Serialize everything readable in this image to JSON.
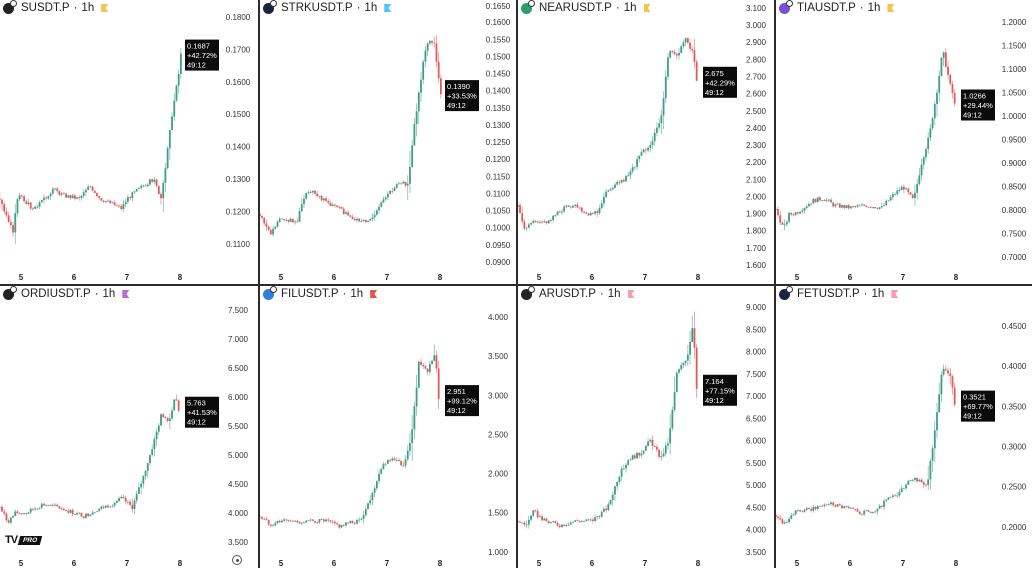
{
  "colors": {
    "up": "#3f9c86",
    "down": "#e05a5a",
    "label_bg": "#0b0b0b"
  },
  "timer": "49:12",
  "branding": {
    "logo": "TV PRO"
  },
  "chart_data": [
    {
      "type": "candlestick",
      "symbol": "SUSDT.P",
      "interval": "1h",
      "icon_color": "#222",
      "flag_color": "#f0c54a",
      "price": "0.1687",
      "change": "+42.72%",
      "last": 0.1687,
      "ylim": [
        0.1035,
        0.1806
      ],
      "yticks": [
        "0.1800",
        "0.1700",
        "0.1600",
        "0.1500",
        "0.1400",
        "0.1300",
        "0.1200",
        "0.1100"
      ],
      "xticks": [
        "5",
        "6",
        "7",
        "8"
      ],
      "path": [
        [
          4.6,
          0.124
        ],
        [
          4.75,
          0.117
        ],
        [
          4.85,
          0.114
        ],
        [
          4.95,
          0.126
        ],
        [
          5.2,
          0.121
        ],
        [
          5.4,
          0.123
        ],
        [
          5.6,
          0.127
        ],
        [
          5.8,
          0.125
        ],
        [
          6.1,
          0.124
        ],
        [
          6.3,
          0.128
        ],
        [
          6.5,
          0.124
        ],
        [
          6.9,
          0.121
        ],
        [
          7.0,
          0.124
        ],
        [
          7.3,
          0.128
        ],
        [
          7.5,
          0.13
        ],
        [
          7.65,
          0.124
        ],
        [
          7.72,
          0.133
        ],
        [
          7.85,
          0.15
        ],
        [
          8.0,
          0.165
        ],
        [
          8.05,
          0.1687
        ]
      ]
    },
    {
      "type": "candlestick",
      "symbol": "STRKUSDT.P",
      "interval": "1h",
      "icon_color": "#1c2340",
      "flag_color": "#4fc3f7",
      "price": "0.1390",
      "change": "+33.53%",
      "last": 0.139,
      "ylim": [
        0.0891,
        0.1621
      ],
      "yticks": [
        "0.1650",
        "0.1600",
        "0.1550",
        "0.1500",
        "0.1450",
        "0.1400",
        "0.1350",
        "0.1300",
        "0.1250",
        "0.1200",
        "0.1150",
        "0.1100",
        "0.1050",
        "0.1000",
        "0.0950",
        "0.0900"
      ],
      "xticks": [
        "5",
        "6",
        "7",
        "8"
      ],
      "path": [
        [
          4.6,
          0.104
        ],
        [
          4.8,
          0.098
        ],
        [
          4.95,
          0.102
        ],
        [
          5.1,
          0.1025
        ],
        [
          5.3,
          0.1015
        ],
        [
          5.45,
          0.11
        ],
        [
          5.6,
          0.111
        ],
        [
          5.8,
          0.108
        ],
        [
          6.2,
          0.1045
        ],
        [
          6.5,
          0.1015
        ],
        [
          6.7,
          0.1025
        ],
        [
          6.95,
          0.109
        ],
        [
          7.2,
          0.1125
        ],
        [
          7.4,
          0.113
        ],
        [
          7.5,
          0.128
        ],
        [
          7.7,
          0.15
        ],
        [
          7.8,
          0.155
        ],
        [
          7.9,
          0.153
        ],
        [
          8.0,
          0.141
        ],
        [
          8.05,
          0.139
        ]
      ]
    },
    {
      "type": "candlestick",
      "symbol": "NEARUSDT.P",
      "interval": "1h",
      "icon_color": "#2e9e6e",
      "flag_color": "#f0c54a",
      "price": "2.675",
      "change": "+42.29%",
      "last": 2.675,
      "ylim": [
        1.6,
        3.059
      ],
      "yticks": [
        "3.100",
        "3.000",
        "2.900",
        "2.800",
        "2.700",
        "2.600",
        "2.500",
        "2.400",
        "2.300",
        "2.200",
        "2.100",
        "2.000",
        "1.900",
        "1.800",
        "1.700",
        "1.600"
      ],
      "xticks": [
        "5",
        "6",
        "7",
        "8"
      ],
      "path": [
        [
          4.6,
          1.94
        ],
        [
          4.75,
          1.8
        ],
        [
          4.85,
          1.85
        ],
        [
          5.0,
          1.84
        ],
        [
          5.2,
          1.86
        ],
        [
          5.5,
          1.94
        ],
        [
          5.7,
          1.95
        ],
        [
          5.9,
          1.9
        ],
        [
          6.1,
          1.91
        ],
        [
          6.3,
          2.04
        ],
        [
          6.5,
          2.08
        ],
        [
          6.7,
          2.12
        ],
        [
          6.9,
          2.24
        ],
        [
          7.1,
          2.3
        ],
        [
          7.3,
          2.45
        ],
        [
          7.45,
          2.85
        ],
        [
          7.6,
          2.82
        ],
        [
          7.75,
          2.92
        ],
        [
          7.9,
          2.85
        ],
        [
          8.0,
          2.675
        ]
      ]
    },
    {
      "type": "candlestick",
      "symbol": "TIAUSDT.P",
      "interval": "1h",
      "icon_color": "#7b4fd6",
      "flag_color": "#f0c54a",
      "price": "1.0266",
      "change": "+29.44%",
      "last": 1.0266,
      "ylim": [
        0.683,
        1.2149
      ],
      "yticks": [
        "1.2000",
        "1.1500",
        "1.1000",
        "1.0500",
        "1.0000",
        "0.9500",
        "0.9000",
        "0.8500",
        "0.8000",
        "0.7500",
        "0.7000"
      ],
      "xticks": [
        "5",
        "6",
        "7",
        "8"
      ],
      "path": [
        [
          4.6,
          0.8
        ],
        [
          4.75,
          0.76
        ],
        [
          4.85,
          0.79
        ],
        [
          5.0,
          0.795
        ],
        [
          5.3,
          0.82
        ],
        [
          5.5,
          0.825
        ],
        [
          5.7,
          0.81
        ],
        [
          6.0,
          0.805
        ],
        [
          6.3,
          0.81
        ],
        [
          6.6,
          0.805
        ],
        [
          6.8,
          0.83
        ],
        [
          7.0,
          0.85
        ],
        [
          7.2,
          0.82
        ],
        [
          7.35,
          0.9
        ],
        [
          7.5,
          0.96
        ],
        [
          7.65,
          1.06
        ],
        [
          7.75,
          1.14
        ],
        [
          7.9,
          1.06
        ],
        [
          8.0,
          1.0266
        ]
      ]
    },
    {
      "type": "candlestick",
      "symbol": "ORDIUSDT.P",
      "interval": "1h",
      "icon_color": "#222",
      "flag_color": "#b86bd4",
      "price": "5.763",
      "change": "+41.53%",
      "last": 5.763,
      "ylim": [
        3.345,
        7.655
      ],
      "yticks": [
        "7.500",
        "7.000",
        "6.500",
        "6.000",
        "5.500",
        "5.000",
        "4.500",
        "4.000",
        "3.500"
      ],
      "xticks": [
        "5",
        "6",
        "7",
        "8"
      ],
      "path": [
        [
          4.6,
          4.1
        ],
        [
          4.75,
          3.85
        ],
        [
          4.9,
          4.0
        ],
        [
          5.1,
          4.0
        ],
        [
          5.4,
          4.15
        ],
        [
          5.7,
          4.1
        ],
        [
          6.0,
          4.0
        ],
        [
          6.2,
          3.95
        ],
        [
          6.4,
          4.05
        ],
        [
          6.7,
          4.15
        ],
        [
          6.9,
          4.25
        ],
        [
          7.1,
          4.1
        ],
        [
          7.3,
          4.6
        ],
        [
          7.5,
          5.2
        ],
        [
          7.65,
          5.7
        ],
        [
          7.8,
          5.6
        ],
        [
          7.9,
          6.0
        ],
        [
          8.0,
          5.763
        ]
      ]
    },
    {
      "type": "candlestick",
      "symbol": "FILUSDT.P",
      "interval": "1h",
      "icon_color": "#2f7de1",
      "flag_color": "#e5534b",
      "price": "2.951",
      "change": "+99.12%",
      "last": 2.951,
      "ylim": [
        1.011,
        4.204
      ],
      "yticks": [
        "4.000",
        "3.500",
        "3.000",
        "2.500",
        "2.000",
        "1.500",
        "1.000"
      ],
      "xticks": [
        "5",
        "6",
        "7",
        "8"
      ],
      "path": [
        [
          4.6,
          1.45
        ],
        [
          4.8,
          1.35
        ],
        [
          5.0,
          1.4
        ],
        [
          5.4,
          1.38
        ],
        [
          5.8,
          1.4
        ],
        [
          6.1,
          1.33
        ],
        [
          6.5,
          1.4
        ],
        [
          6.7,
          1.7
        ],
        [
          6.9,
          2.1
        ],
        [
          7.1,
          2.2
        ],
        [
          7.3,
          2.1
        ],
        [
          7.45,
          2.4
        ],
        [
          7.6,
          3.4
        ],
        [
          7.75,
          3.3
        ],
        [
          7.9,
          3.5
        ],
        [
          8.0,
          2.951
        ]
      ]
    },
    {
      "type": "candlestick",
      "symbol": "ARUSDT.P",
      "interval": "1h",
      "icon_color": "#222",
      "flag_color": "#f0a0b0",
      "price": "7.164",
      "change": "+77.15%",
      "last": 7.164,
      "ylim": [
        3.52,
        9.135
      ],
      "yticks": [
        "9.000",
        "8.500",
        "8.000",
        "7.500",
        "7.000",
        "6.500",
        "6.000",
        "5.500",
        "5.000",
        "4.500",
        "4.000",
        "3.500"
      ],
      "xticks": [
        "5",
        "6",
        "7",
        "8"
      ],
      "path": [
        [
          4.6,
          4.2
        ],
        [
          4.75,
          4.1
        ],
        [
          4.9,
          4.4
        ],
        [
          5.1,
          4.2
        ],
        [
          5.4,
          4.1
        ],
        [
          5.7,
          4.2
        ],
        [
          6.0,
          4.2
        ],
        [
          6.3,
          4.5
        ],
        [
          6.5,
          5.2
        ],
        [
          6.7,
          5.6
        ],
        [
          6.9,
          5.7
        ],
        [
          7.1,
          6.0
        ],
        [
          7.3,
          5.6
        ],
        [
          7.45,
          6.0
        ],
        [
          7.6,
          7.5
        ],
        [
          7.8,
          7.9
        ],
        [
          7.9,
          8.6
        ],
        [
          8.0,
          7.164
        ]
      ]
    },
    {
      "type": "candlestick",
      "symbol": "FETUSDT.P",
      "interval": "1h",
      "icon_color": "#1c2340",
      "flag_color": "#f0a0b0",
      "price": "0.3521",
      "change": "+69.77%",
      "last": 0.3521,
      "ylim": [
        0.17,
        0.481
      ],
      "yticks": [
        "0.4500",
        "0.4000",
        "0.3500",
        "0.3000",
        "0.2500",
        "0.2000"
      ],
      "xticks": [
        "5",
        "6",
        "7",
        "8"
      ],
      "path": [
        [
          4.6,
          0.215
        ],
        [
          4.75,
          0.205
        ],
        [
          4.95,
          0.218
        ],
        [
          5.3,
          0.222
        ],
        [
          5.6,
          0.23
        ],
        [
          5.9,
          0.225
        ],
        [
          6.2,
          0.218
        ],
        [
          6.5,
          0.22
        ],
        [
          6.7,
          0.235
        ],
        [
          6.9,
          0.24
        ],
        [
          7.1,
          0.255
        ],
        [
          7.3,
          0.26
        ],
        [
          7.45,
          0.25
        ],
        [
          7.6,
          0.32
        ],
        [
          7.75,
          0.4
        ],
        [
          7.9,
          0.385
        ],
        [
          8.0,
          0.3521
        ]
      ]
    }
  ]
}
